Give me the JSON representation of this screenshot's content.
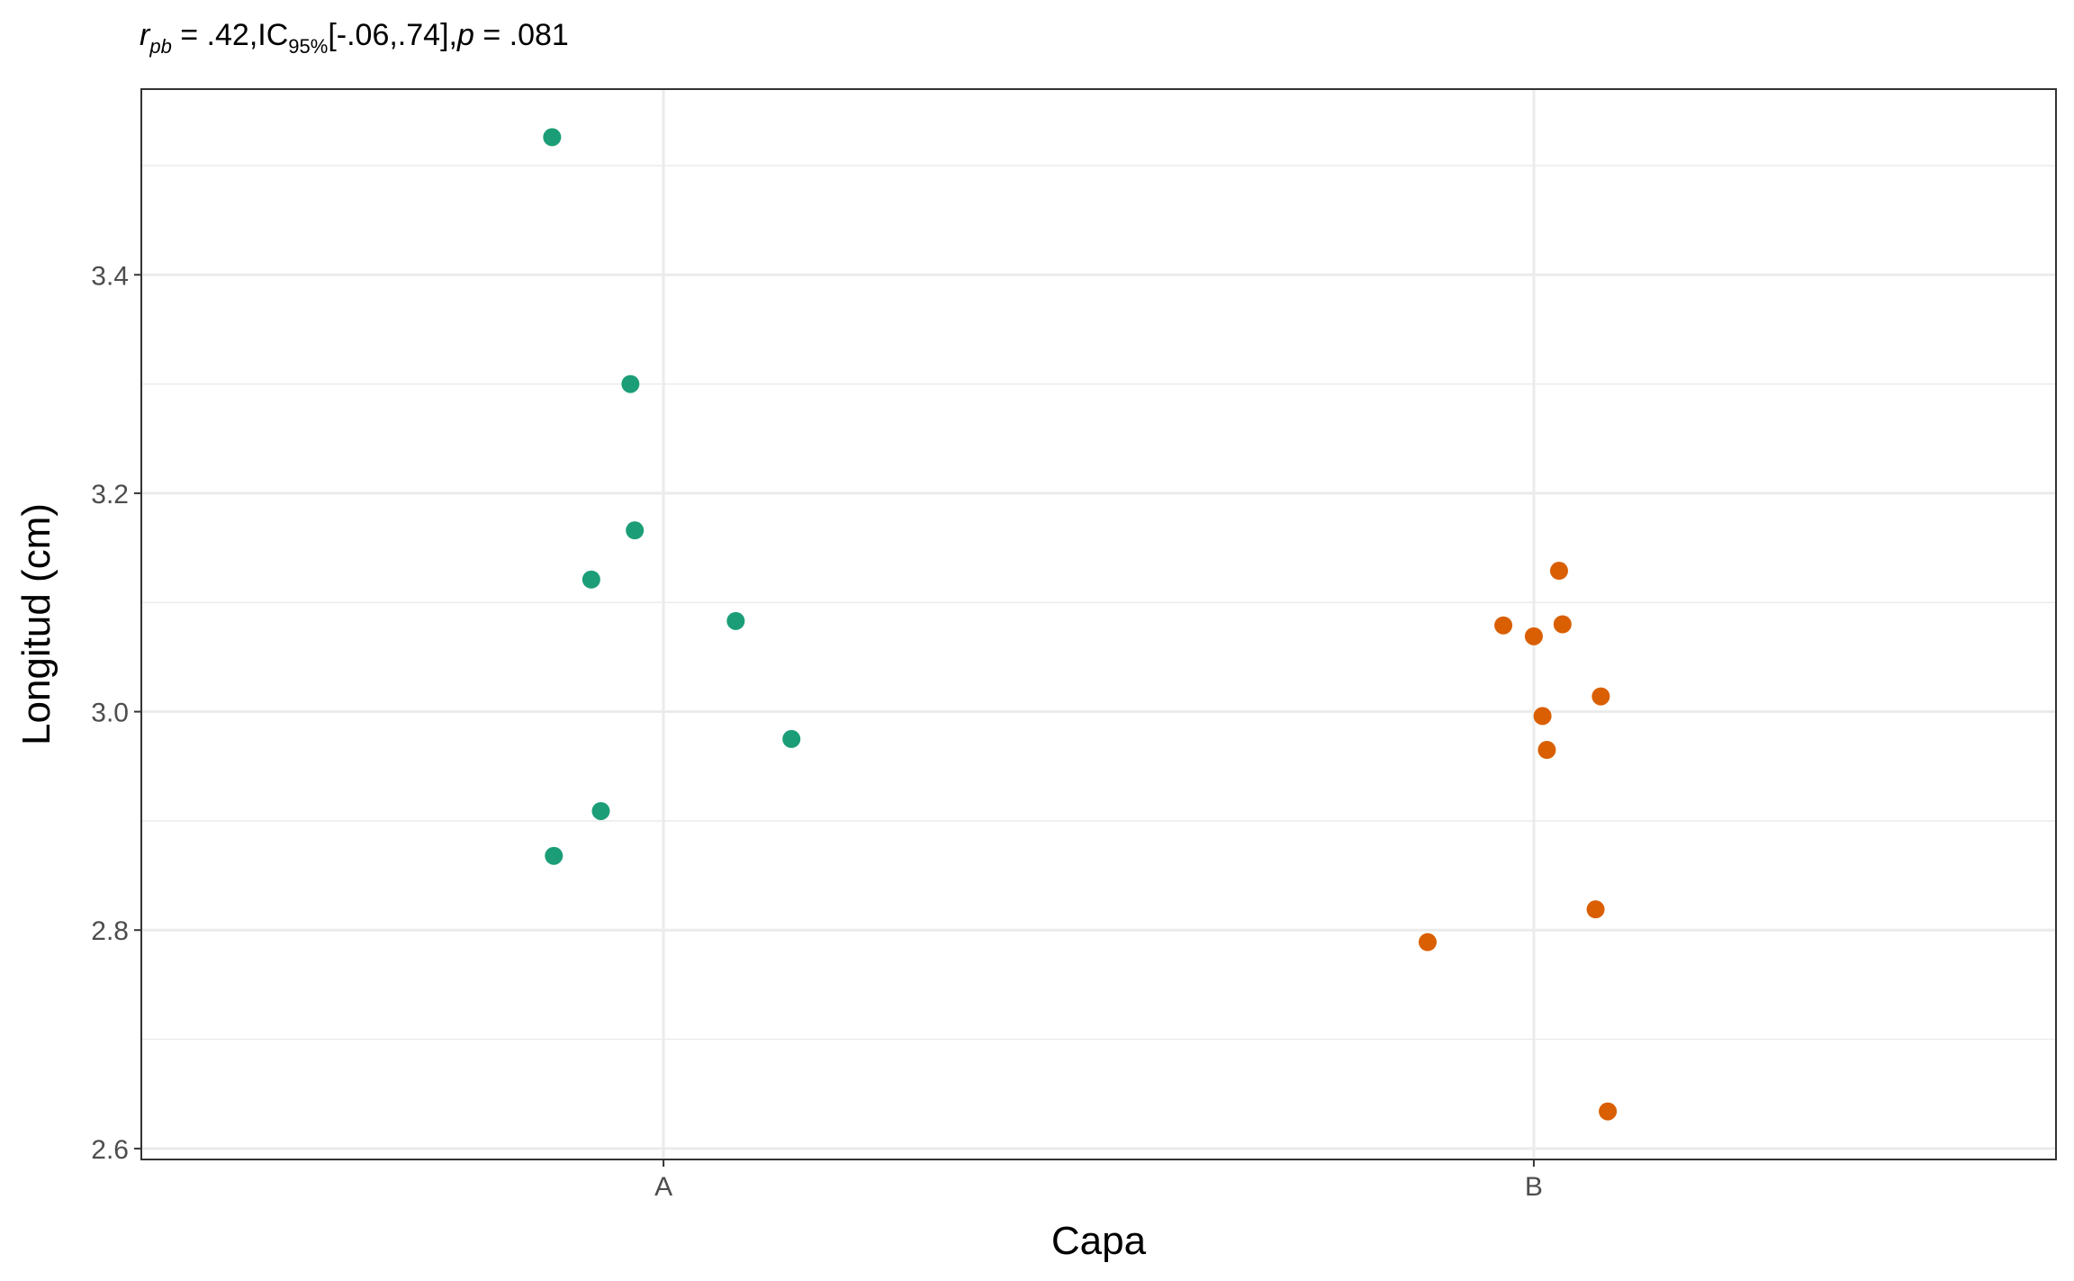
{
  "chart_data": {
    "type": "scatter",
    "subtitle": {
      "r_symbol": "r",
      "r_subscript": "pb",
      "r_value": " = .42,",
      "ci_label": "IC",
      "ci_subscript": "95%",
      "ci_value": "[-.06,.74],",
      "p_symbol": "p",
      "p_value": " = .081"
    },
    "xlabel": "Capa",
    "ylabel": "Longitud (cm)",
    "categories": [
      "A",
      "B"
    ],
    "ylim": [
      2.59,
      3.57
    ],
    "y_ticks": [
      2.6,
      2.8,
      3.0,
      3.2,
      3.4
    ],
    "y_tick_labels": [
      "2.6",
      "2.8",
      "3.0",
      "3.2",
      "3.4"
    ],
    "grid": true,
    "legend": "none",
    "series": [
      {
        "category": "A",
        "color": "#1b9e77",
        "points": [
          {
            "jitter": -0.128,
            "y": 3.526
          },
          {
            "jitter": -0.038,
            "y": 3.3
          },
          {
            "jitter": -0.033,
            "y": 3.166
          },
          {
            "jitter": -0.083,
            "y": 3.121
          },
          {
            "jitter": 0.083,
            "y": 3.083
          },
          {
            "jitter": 0.147,
            "y": 2.975
          },
          {
            "jitter": -0.072,
            "y": 2.909
          },
          {
            "jitter": -0.126,
            "y": 2.868
          }
        ]
      },
      {
        "category": "B",
        "color": "#d95f02",
        "points": [
          {
            "jitter": 0.029,
            "y": 3.129
          },
          {
            "jitter": -0.035,
            "y": 3.079
          },
          {
            "jitter": 0.033,
            "y": 3.08
          },
          {
            "jitter": 0.0,
            "y": 3.069
          },
          {
            "jitter": 0.077,
            "y": 3.014
          },
          {
            "jitter": 0.01,
            "y": 2.996
          },
          {
            "jitter": 0.015,
            "y": 2.965
          },
          {
            "jitter": 0.071,
            "y": 2.819
          },
          {
            "jitter": -0.122,
            "y": 2.789
          },
          {
            "jitter": 0.085,
            "y": 2.634
          }
        ]
      }
    ]
  }
}
